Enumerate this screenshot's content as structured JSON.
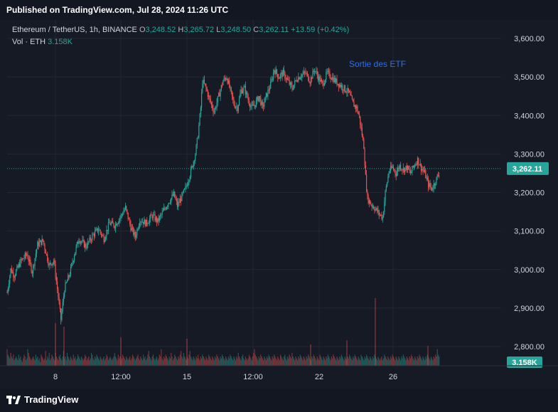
{
  "header": {
    "published": "Published on TradingView.com, Jul 28, 2024 11:26 UTC"
  },
  "legend": {
    "symbol": "Ethereum / TetherUS, 1h, BINANCE",
    "o_label": "O",
    "o_value": "3,248.52",
    "h_label": "H",
    "h_value": "3,265.72",
    "l_label": "L",
    "l_value": "3,248.50",
    "c_label": "C",
    "c_value": "3,262.11",
    "change": "+13.59 (+0.42%)",
    "vol_label": "Vol · ETH",
    "vol_value": "3.158K"
  },
  "annotation": "Sortie des ETF",
  "footer": {
    "brand": "TradingView"
  },
  "colors": {
    "up": "#26a69a",
    "down": "#ef5350",
    "annotation": "#2f6ee8",
    "grid": "#232733"
  },
  "chart_data": {
    "type": "candlestick",
    "y_ticks": [
      "3,600.00",
      "3,500.00",
      "3,400.00",
      "3,300.00",
      "3,200.00",
      "3,100.00",
      "3,000.00",
      "2,900.00",
      "2,800.00"
    ],
    "y_tick_values": [
      3600,
      3500,
      3400,
      3300,
      3200,
      3100,
      3000,
      2900,
      2800
    ],
    "ylim": [
      2800,
      3620
    ],
    "x_ticks": [
      "8",
      "12:00",
      "15",
      "12:00",
      "22",
      "26"
    ],
    "last_price": "3,262.11",
    "last_price_value": 3262.11,
    "last_volume": "3.158K",
    "price_path": [
      [
        0,
        2940
      ],
      [
        4,
        3000
      ],
      [
        8,
        2985
      ],
      [
        15,
        3020
      ],
      [
        22,
        3040
      ],
      [
        28,
        2995
      ],
      [
        34,
        3065
      ],
      [
        40,
        3075
      ],
      [
        47,
        3010
      ],
      [
        52,
        3025
      ],
      [
        56,
        2950
      ],
      [
        60,
        2870
      ],
      [
        64,
        2950
      ],
      [
        70,
        2990
      ],
      [
        75,
        3040
      ],
      [
        80,
        3080
      ],
      [
        88,
        3060
      ],
      [
        96,
        3090
      ],
      [
        102,
        3105
      ],
      [
        108,
        3080
      ],
      [
        114,
        3120
      ],
      [
        120,
        3115
      ],
      [
        126,
        3135
      ],
      [
        132,
        3160
      ],
      [
        138,
        3110
      ],
      [
        143,
        3085
      ],
      [
        148,
        3130
      ],
      [
        155,
        3120
      ],
      [
        162,
        3140
      ],
      [
        168,
        3125
      ],
      [
        174,
        3150
      ],
      [
        180,
        3175
      ],
      [
        186,
        3195
      ],
      [
        190,
        3165
      ],
      [
        194,
        3185
      ],
      [
        199,
        3210
      ],
      [
        205,
        3255
      ],
      [
        210,
        3300
      ],
      [
        213,
        3350
      ],
      [
        216,
        3420
      ],
      [
        218,
        3490
      ],
      [
        222,
        3470
      ],
      [
        226,
        3440
      ],
      [
        231,
        3410
      ],
      [
        236,
        3450
      ],
      [
        241,
        3490
      ],
      [
        245,
        3500
      ],
      [
        249,
        3465
      ],
      [
        253,
        3430
      ],
      [
        257,
        3420
      ],
      [
        261,
        3465
      ],
      [
        265,
        3470
      ],
      [
        269,
        3440
      ],
      [
        273,
        3420
      ],
      [
        277,
        3430
      ],
      [
        281,
        3450
      ],
      [
        285,
        3420
      ],
      [
        289,
        3450
      ],
      [
        294,
        3480
      ],
      [
        298,
        3520
      ],
      [
        303,
        3500
      ],
      [
        308,
        3510
      ],
      [
        313,
        3490
      ],
      [
        318,
        3470
      ],
      [
        323,
        3495
      ],
      [
        328,
        3505
      ],
      [
        333,
        3510
      ],
      [
        338,
        3490
      ],
      [
        343,
        3520
      ],
      [
        347,
        3500
      ],
      [
        352,
        3480
      ],
      [
        357,
        3510
      ],
      [
        362,
        3500
      ],
      [
        366,
        3490
      ],
      [
        371,
        3480
      ],
      [
        376,
        3470
      ],
      [
        381,
        3460
      ],
      [
        386,
        3430
      ],
      [
        390,
        3420
      ],
      [
        393,
        3395
      ],
      [
        396,
        3350
      ],
      [
        398,
        3320
      ],
      [
        400,
        3240
      ],
      [
        402,
        3185
      ],
      [
        406,
        3170
      ],
      [
        410,
        3160
      ],
      [
        415,
        3145
      ],
      [
        419,
        3135
      ],
      [
        422,
        3200
      ],
      [
        426,
        3255
      ],
      [
        430,
        3265
      ],
      [
        434,
        3250
      ],
      [
        438,
        3270
      ],
      [
        442,
        3260
      ],
      [
        446,
        3265
      ],
      [
        450,
        3250
      ],
      [
        454,
        3270
      ],
      [
        458,
        3285
      ],
      [
        462,
        3265
      ],
      [
        466,
        3250
      ],
      [
        470,
        3220
      ],
      [
        474,
        3210
      ],
      [
        478,
        3230
      ],
      [
        482,
        3250
      ]
    ],
    "volume_bars": [
      9,
      6,
      5,
      4,
      7,
      5,
      4,
      6,
      3,
      4,
      5,
      4,
      3,
      6,
      4,
      5,
      3,
      2,
      4,
      6,
      5,
      3,
      4,
      9,
      7,
      5,
      4,
      3,
      4,
      5,
      4,
      3,
      6,
      4,
      5,
      3,
      4,
      2,
      6,
      5,
      4,
      3,
      4,
      8,
      3,
      5,
      4,
      7,
      3,
      4,
      6,
      5,
      4,
      3,
      7,
      5,
      4,
      3,
      5,
      6,
      4,
      3,
      5,
      8,
      4,
      5,
      3,
      7,
      5,
      4,
      3,
      5,
      4,
      3,
      6,
      4,
      5,
      3,
      4,
      6,
      5,
      4,
      3,
      5,
      4,
      3,
      4,
      6,
      5,
      3,
      4,
      5,
      3,
      4,
      7,
      6,
      4,
      3,
      5,
      4,
      6,
      5,
      4,
      3,
      5,
      4,
      3,
      4,
      5,
      3,
      4,
      6,
      5,
      3,
      4,
      5,
      4,
      3,
      4,
      5,
      7,
      5,
      4,
      3,
      6,
      4,
      5,
      3,
      4,
      6,
      5,
      4,
      3,
      5,
      4,
      3,
      4,
      5,
      3,
      4,
      6,
      5,
      4,
      3,
      4,
      5,
      6,
      4,
      3,
      5,
      4,
      3,
      6,
      4,
      5,
      3,
      4,
      6,
      8,
      5,
      4,
      3,
      5,
      6,
      4,
      3,
      4,
      5,
      3,
      4,
      6,
      5,
      9,
      4,
      3,
      5,
      4,
      6,
      5,
      4,
      3,
      5,
      4,
      7,
      5,
      3,
      4,
      6,
      5,
      4,
      3,
      5,
      4,
      6,
      8,
      5,
      4,
      7,
      5,
      4,
      3,
      5,
      4,
      6,
      8,
      5,
      4,
      3,
      5,
      4,
      3,
      5,
      4,
      6,
      4,
      3,
      5,
      4,
      6,
      5,
      4,
      3,
      5,
      4,
      3,
      6,
      5,
      4,
      3,
      5,
      4,
      3,
      5,
      4,
      6,
      5,
      4,
      3,
      5,
      4,
      6,
      5,
      4,
      3,
      5,
      4,
      3,
      5,
      4,
      6,
      5,
      4,
      3,
      5,
      4,
      3,
      5,
      4,
      7,
      5,
      4,
      3,
      5,
      6,
      4,
      3,
      5,
      4,
      3,
      4,
      6,
      5,
      4,
      3,
      5,
      7,
      9,
      6,
      5,
      4,
      3,
      5,
      4,
      6,
      5,
      4,
      3,
      5,
      4,
      3,
      5,
      4,
      6,
      5,
      4,
      3,
      5,
      4,
      6,
      5,
      4,
      3,
      5,
      4,
      3,
      6,
      5,
      4,
      3,
      5,
      6,
      4,
      3,
      5,
      4,
      6,
      5,
      4,
      7,
      5,
      4,
      3,
      5,
      4,
      3,
      5,
      4,
      6,
      5,
      4,
      3,
      5,
      4,
      3,
      5,
      4,
      6,
      5,
      4,
      3,
      5,
      4,
      6,
      5,
      4,
      3,
      5,
      4,
      3,
      6,
      5,
      4,
      3,
      5,
      4,
      3,
      5,
      4,
      6,
      5,
      4,
      3,
      5,
      4,
      6,
      5,
      4,
      3,
      5,
      4,
      3,
      5,
      4,
      6,
      5,
      4,
      3,
      5,
      4,
      3,
      5,
      4,
      6,
      5,
      4,
      3,
      5,
      4,
      6,
      5,
      4,
      3,
      5,
      4,
      3,
      6,
      5,
      4,
      3,
      5,
      4,
      6,
      5,
      4,
      3,
      5,
      4,
      3,
      5,
      4,
      6,
      5,
      4,
      3,
      5,
      4,
      3,
      4,
      5,
      3,
      4,
      6,
      5,
      4,
      3,
      5,
      4,
      3,
      5,
      4,
      6,
      5,
      4,
      3,
      5,
      4,
      3,
      5,
      4,
      3,
      5,
      4,
      6,
      5,
      4,
      3,
      5,
      4,
      3,
      5,
      4,
      6,
      5,
      4,
      3,
      5,
      4,
      3,
      5,
      4,
      6,
      5,
      4,
      3,
      5,
      4,
      3,
      5,
      4,
      6,
      5,
      4,
      3,
      5,
      4,
      3,
      5,
      4,
      6,
      5
    ]
  }
}
